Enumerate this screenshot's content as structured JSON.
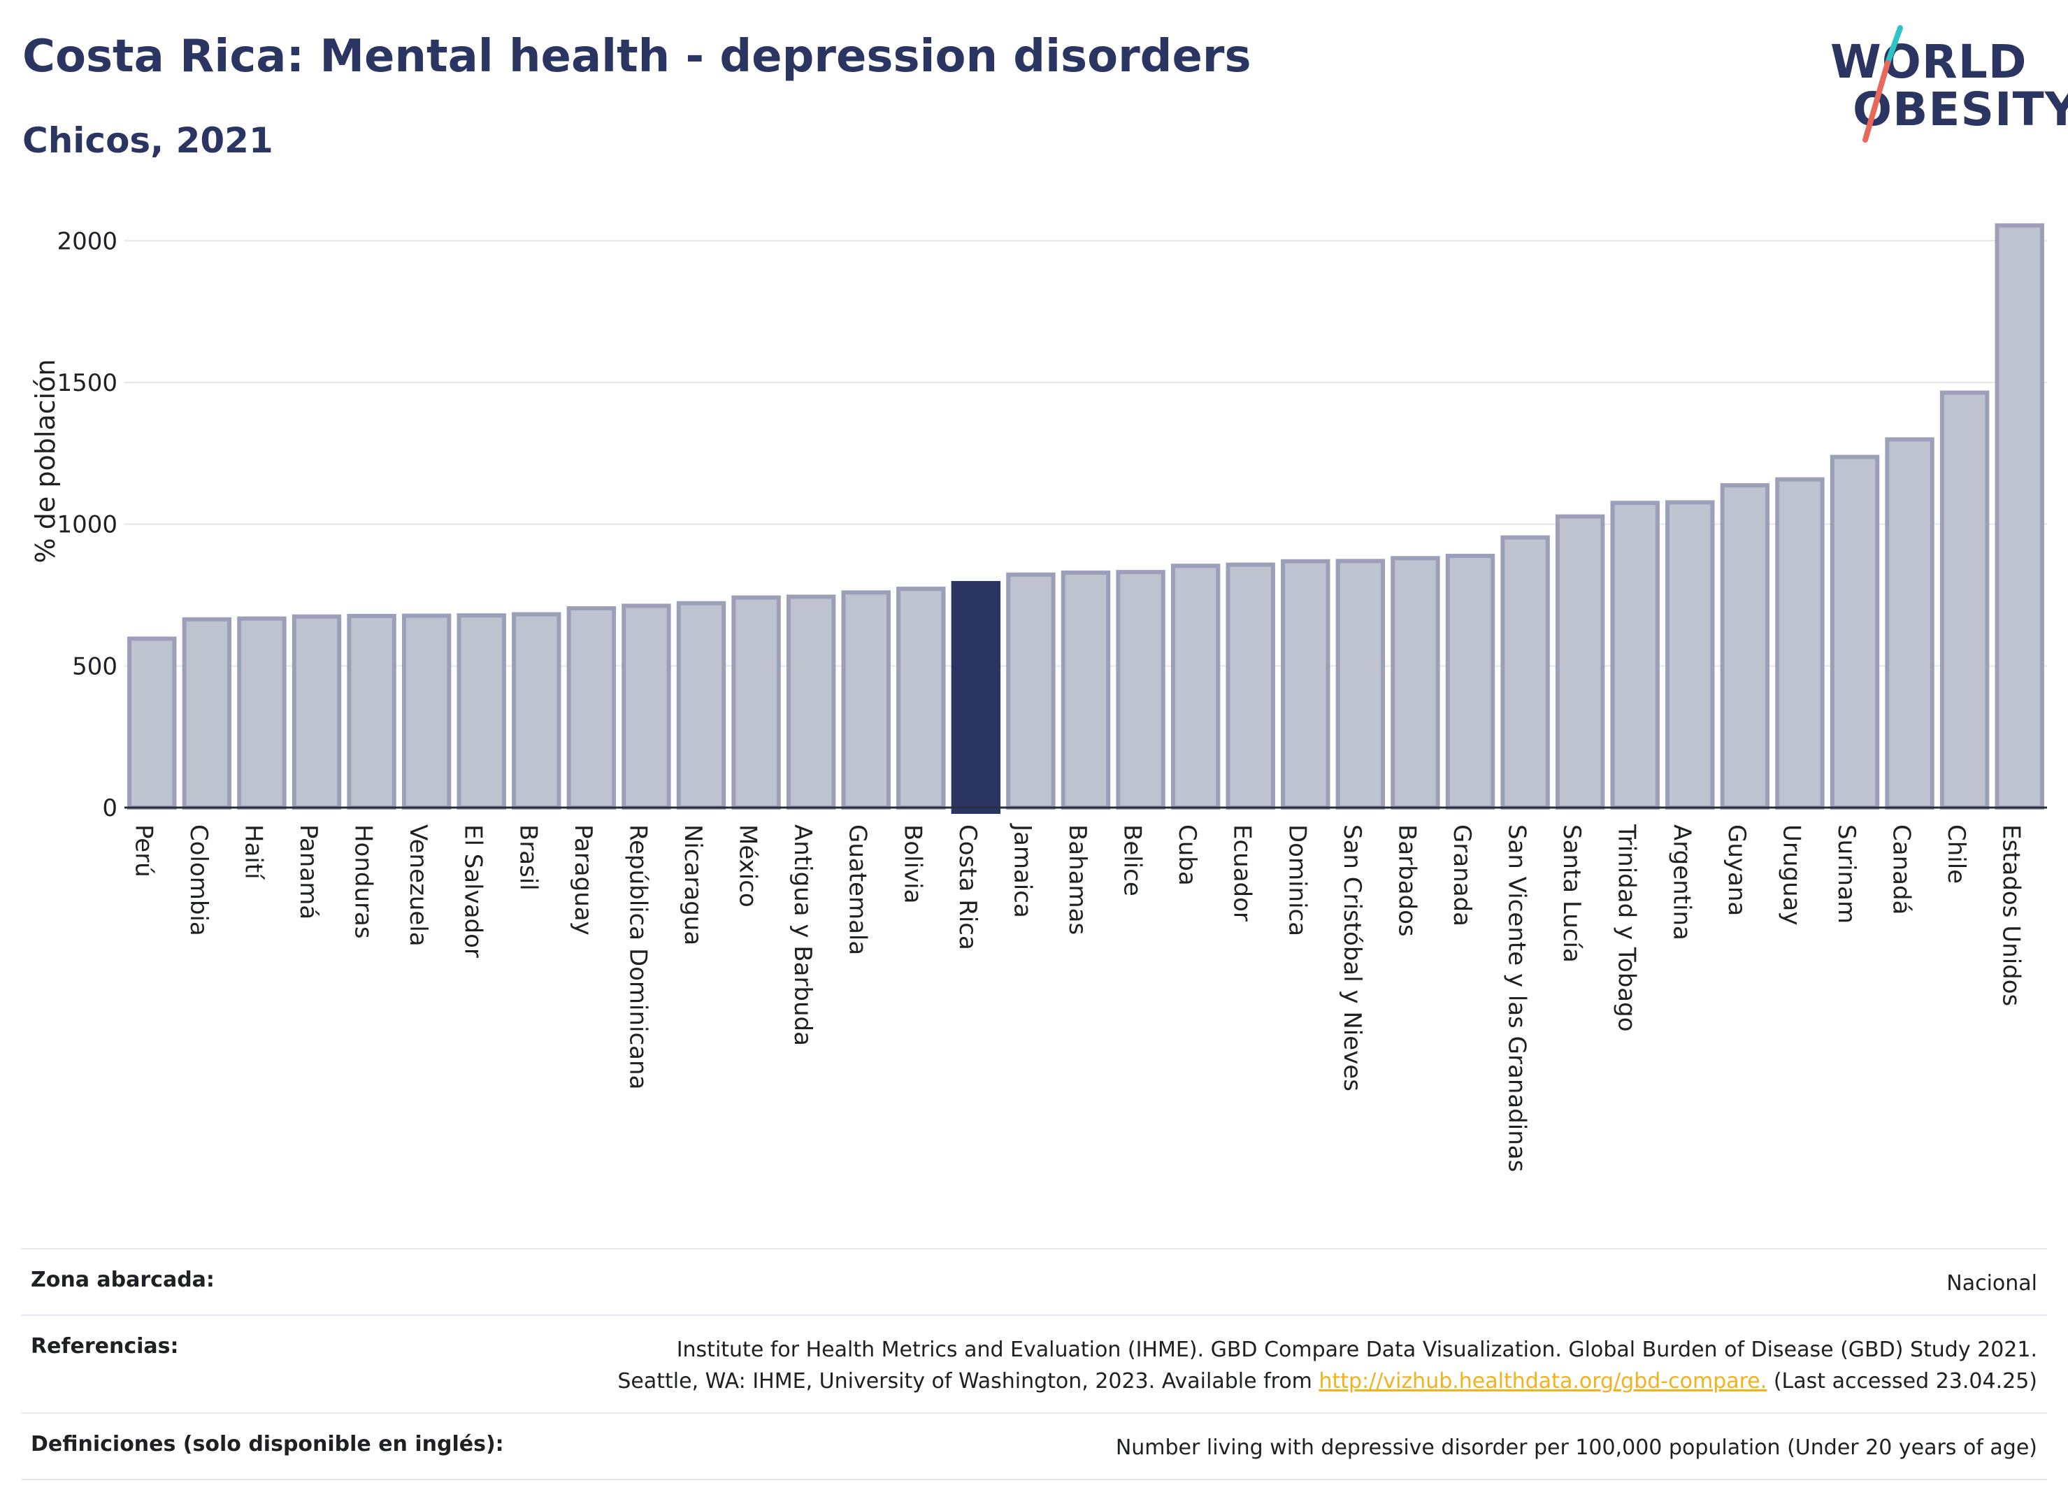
{
  "header": {
    "title": "Costa Rica: Mental health - depression disorders",
    "subtitle": "Chicos, 2021",
    "logo_line1": "WORLD",
    "logo_line2": "OBESITY"
  },
  "colors": {
    "title": "#2b3562",
    "bar": "#bfc2cf",
    "bar_border": "#9ba0b8",
    "highlight": "#2b3562",
    "link": "#f2b21d",
    "logo_teal": "#2ec4c4",
    "logo_coral": "#e8685a"
  },
  "chart_data": {
    "type": "bar",
    "title": "Costa Rica: Mental health - depression disorders",
    "subtitle": "Chicos, 2021",
    "xlabel": "",
    "ylabel": "% de población",
    "ylim": [
      0,
      2050
    ],
    "yticks": [
      0,
      500,
      1000,
      1500,
      2000
    ],
    "grid": true,
    "highlight": "Costa Rica",
    "categories": [
      "Perú",
      "Colombia",
      "Haití",
      "Panamá",
      "Honduras",
      "Venezuela",
      "El Salvador",
      "Brasil",
      "Paraguay",
      "República Dominicana",
      "Nicaragua",
      "México",
      "Antigua y Barbuda",
      "Guatemala",
      "Bolivia",
      "Costa Rica",
      "Jamaica",
      "Bahamas",
      "Belice",
      "Cuba",
      "Ecuador",
      "Dominica",
      "San Cristóbal y Nieves",
      "Barbados",
      "Granada",
      "San Vicente y las Granadinas",
      "Santa Lucía",
      "Trinidad y Tobago",
      "Argentina",
      "Guyana",
      "Uruguay",
      "Surinam",
      "Canadá",
      "Chile",
      "Estados Unidos"
    ],
    "values": [
      596,
      664,
      667,
      674,
      676,
      677,
      678,
      682,
      703,
      712,
      721,
      741,
      744,
      759,
      772,
      792,
      822,
      829,
      831,
      853,
      857,
      869,
      870,
      880,
      888,
      953,
      1027,
      1075,
      1077,
      1137,
      1158,
      1237,
      1299,
      1464,
      2054
    ]
  },
  "footer": {
    "zone_label": "Zona abarcada:",
    "zone_value": "Nacional",
    "refs_label": "Referencias:",
    "refs_line1": "Institute for Health Metrics and Evaluation (IHME). GBD Compare Data Visualization. Global Burden of Disease (GBD) Study 2021.",
    "refs_line2_pre": "Seattle, WA: IHME, University of Washington, 2023. Available from ",
    "refs_link": "http://vizhub.healthdata.org/gbd-compare.",
    "refs_line2_post": " (Last accessed 23.04.25)",
    "defs_label": "Definiciones (solo disponible en inglés):",
    "defs_value": "Number living with depressive disorder per 100,000 population (Under 20 years of age)"
  }
}
